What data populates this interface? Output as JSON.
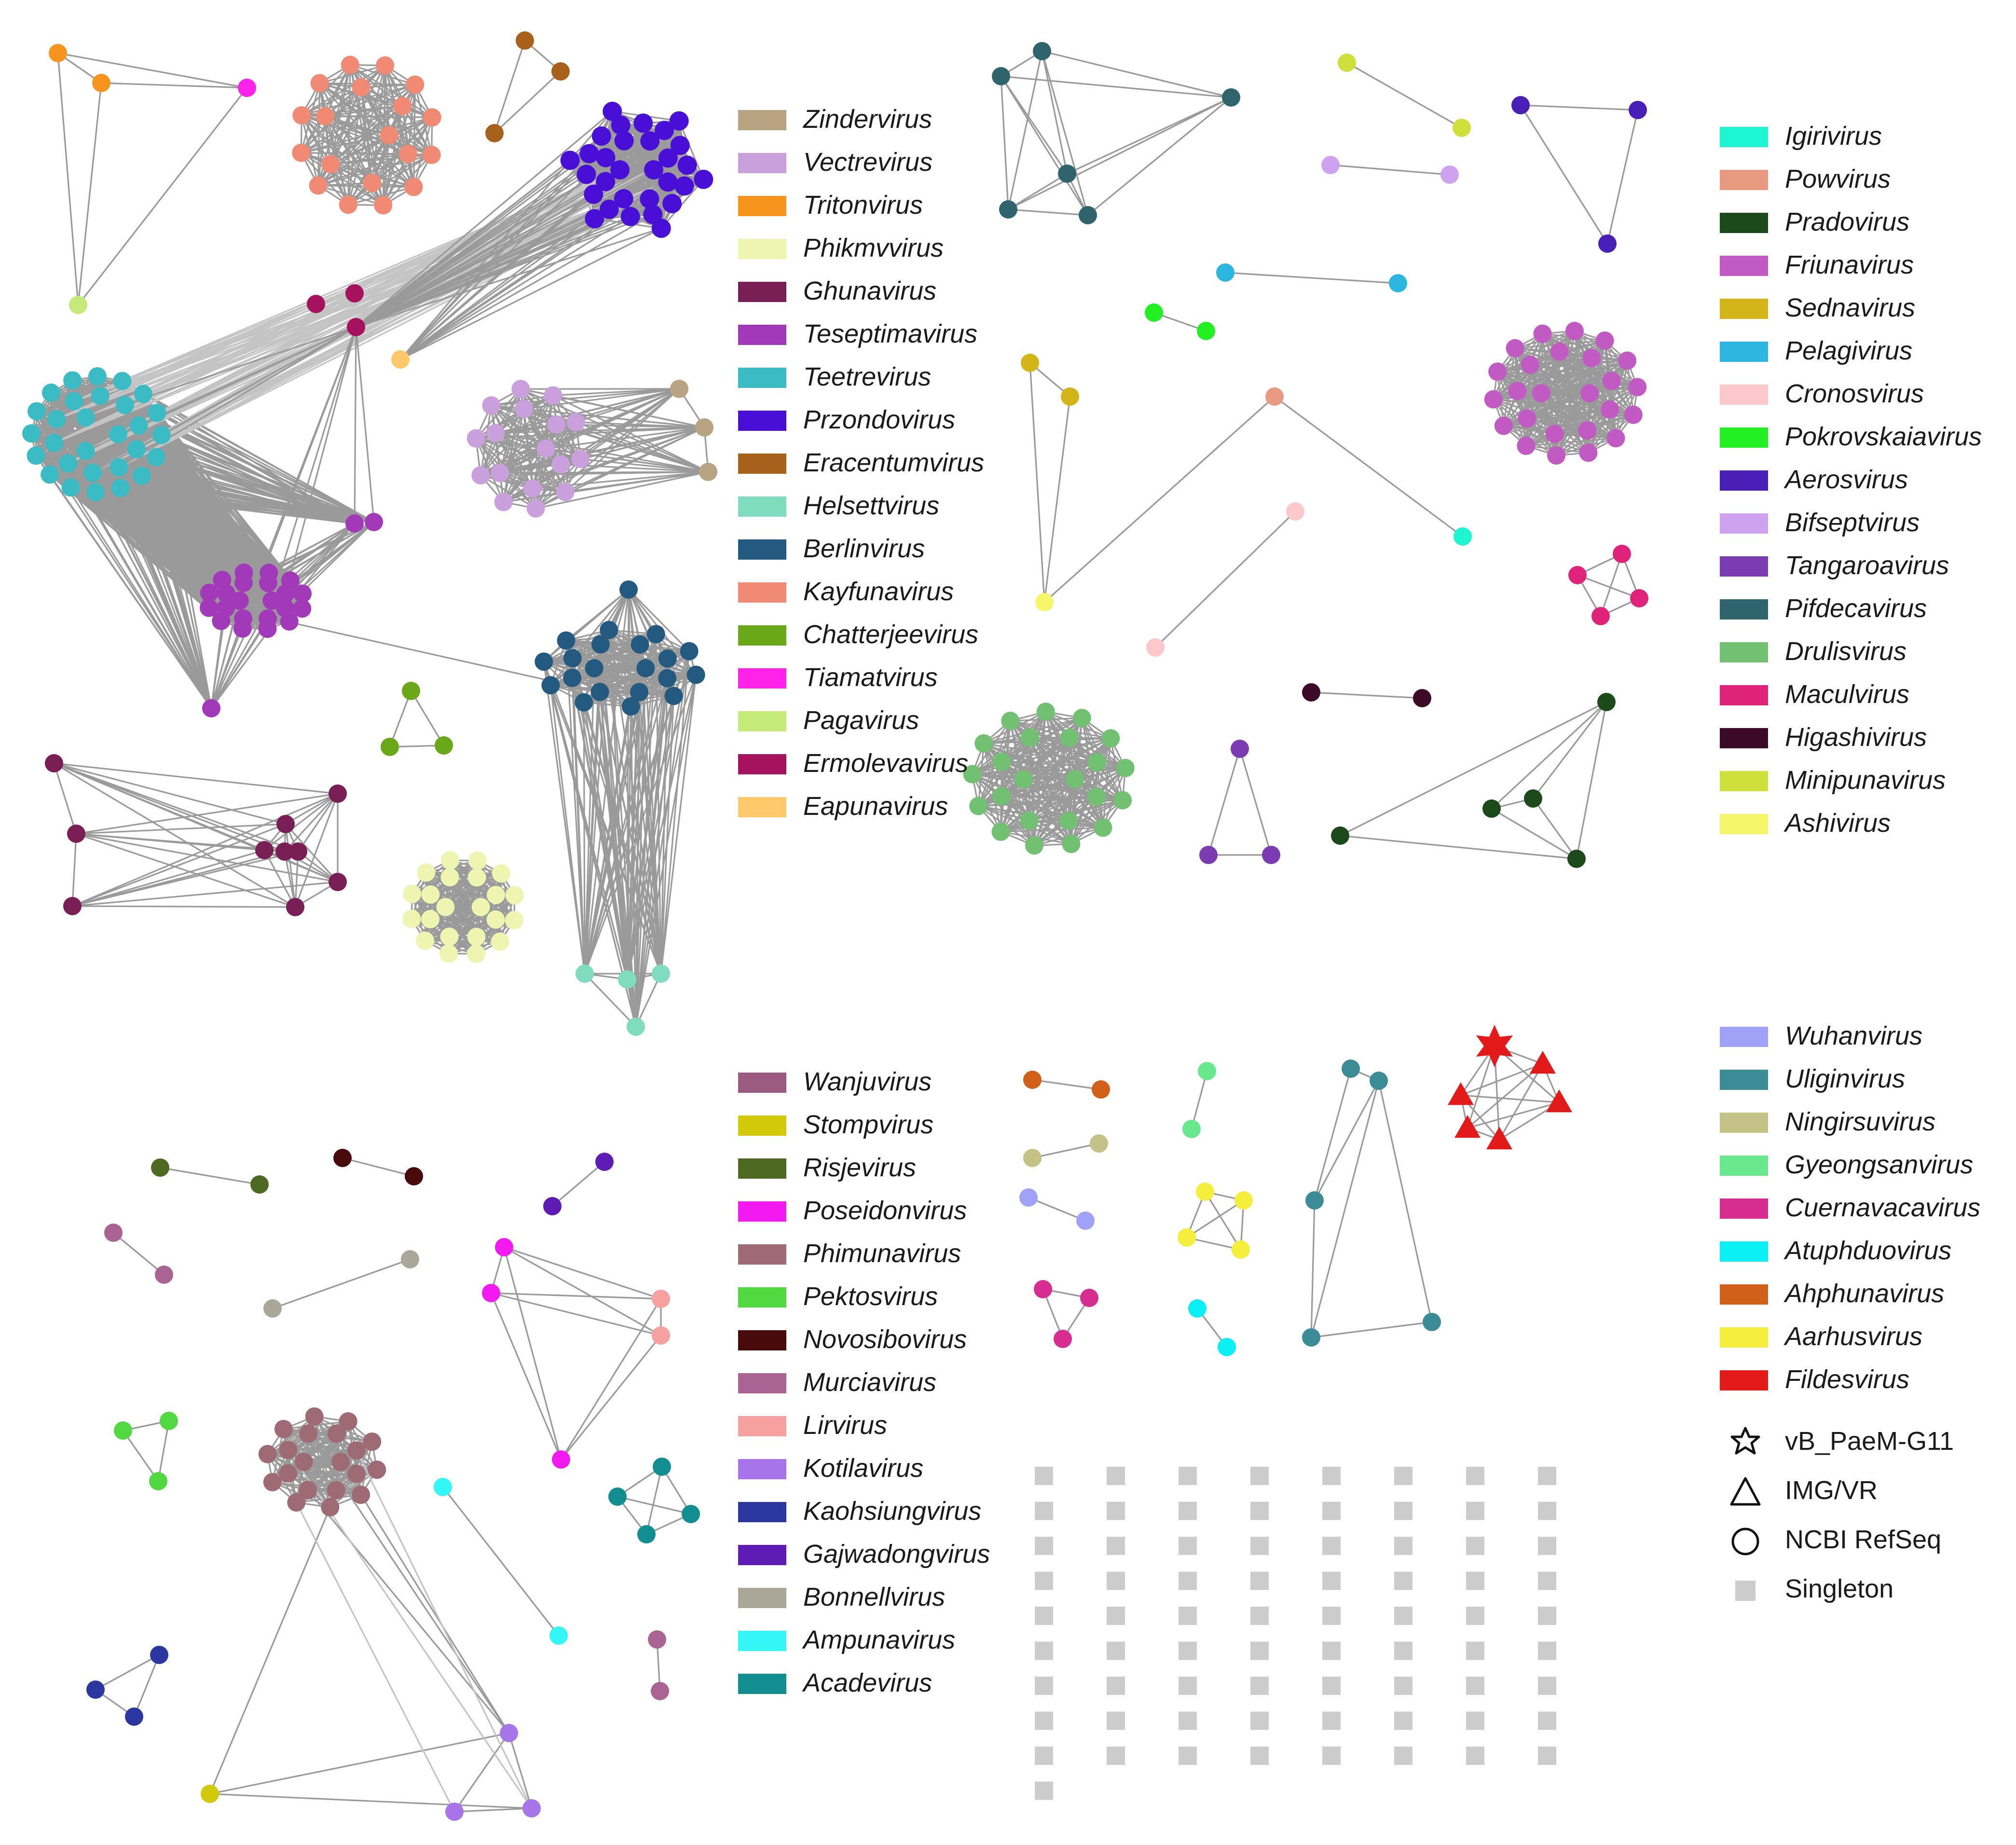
{
  "legend_columns": [
    {
      "id": "legend-a",
      "items": [
        {
          "label": "Zindervirus",
          "color": "#b8a482"
        },
        {
          "label": "Vectrevirus",
          "color": "#c9a0dc"
        },
        {
          "label": "Tritonvirus",
          "color": "#f7941d"
        },
        {
          "label": "Phikmvvirus",
          "color": "#eef5b0"
        },
        {
          "label": "Ghunavirus",
          "color": "#7a1f55"
        },
        {
          "label": "Teseptimavirus",
          "color": "#a139b8"
        },
        {
          "label": "Teetrevirus",
          "color": "#3bbcc4"
        },
        {
          "label": "Przondovirus",
          "color": "#4a0fd6"
        },
        {
          "label": "Eracentumvirus",
          "color": "#a8611a"
        },
        {
          "label": "Helsettvirus",
          "color": "#7fdcbc"
        },
        {
          "label": "Berlinvirus",
          "color": "#245a7f"
        },
        {
          "label": "Kayfunavirus",
          "color": "#f08a74"
        },
        {
          "label": "Chatterjeevirus",
          "color": "#6aa81a"
        },
        {
          "label": "Tiamatvirus",
          "color": "#ff22e8"
        },
        {
          "label": "Pagavirus",
          "color": "#c6ea7a"
        },
        {
          "label": "Ermolevavirus",
          "color": "#a5125d"
        },
        {
          "label": "Eapunavirus",
          "color": "#ffc86a"
        }
      ]
    },
    {
      "id": "legend-b",
      "items": [
        {
          "label": "Igirivirus",
          "color": "#1ef5d3"
        },
        {
          "label": "Powvirus",
          "color": "#e89a80"
        },
        {
          "label": "Pradovirus",
          "color": "#1c4a1a"
        },
        {
          "label": "Friunavirus",
          "color": "#c25ac4"
        },
        {
          "label": "Sednavirus",
          "color": "#d3b51a"
        },
        {
          "label": "Pelagivirus",
          "color": "#2cb6e0"
        },
        {
          "label": "Cronosvirus",
          "color": "#fcc8cc"
        },
        {
          "label": "Pokrovskaiavirus",
          "color": "#22f022"
        },
        {
          "label": "Aerosvirus",
          "color": "#4a1fb8"
        },
        {
          "label": "Bifseptvirus",
          "color": "#cfa2f0"
        },
        {
          "label": "Tangaroavirus",
          "color": "#7a3cb0"
        },
        {
          "label": "Pifdecavirus",
          "color": "#30646c"
        },
        {
          "label": "Drulisvirus",
          "color": "#72c072"
        },
        {
          "label": "Maculvirus",
          "color": "#e0237a"
        },
        {
          "label": "Higashivirus",
          "color": "#3c0a26"
        },
        {
          "label": "Minipunavirus",
          "color": "#cfe03c"
        },
        {
          "label": "Ashivirus",
          "color": "#f6f66a"
        }
      ]
    },
    {
      "id": "legend-c",
      "items": [
        {
          "label": "Wanjuvirus",
          "color": "#9c5a80"
        },
        {
          "label": "Stompvirus",
          "color": "#d2c90a"
        },
        {
          "label": "Risjevirus",
          "color": "#4e6a22"
        },
        {
          "label": "Poseidonvirus",
          "color": "#f21af0"
        },
        {
          "label": "Phimunavirus",
          "color": "#9e6a74"
        },
        {
          "label": "Pektosvirus",
          "color": "#52d840"
        },
        {
          "label": "Novosibovirus",
          "color": "#480a0a"
        },
        {
          "label": "Murciavirus",
          "color": "#aa6494"
        },
        {
          "label": "Lirvirus",
          "color": "#f6a0a0"
        },
        {
          "label": "Kotilavirus",
          "color": "#a774ea"
        },
        {
          "label": "Kaohsiungvirus",
          "color": "#2c36a0"
        },
        {
          "label": "Gajwadongvirus",
          "color": "#5e1cb4"
        },
        {
          "label": "Bonnellvirus",
          "color": "#aaa698"
        },
        {
          "label": "Ampunavirus",
          "color": "#34f6f6"
        },
        {
          "label": "Acadevirus",
          "color": "#128e90"
        }
      ]
    },
    {
      "id": "legend-d",
      "items": [
        {
          "label": "Wuhanvirus",
          "color": "#9fa2f6"
        },
        {
          "label": "Uliginvirus",
          "color": "#3c8c98"
        },
        {
          "label": "Ningirsuvirus",
          "color": "#c4c286"
        },
        {
          "label": "Gyeongsanvirus",
          "color": "#6ae88e"
        },
        {
          "label": "Cuernavacavirus",
          "color": "#d82d90"
        },
        {
          "label": "Atuphduovirus",
          "color": "#0af0f4"
        },
        {
          "label": "Ahphunavirus",
          "color": "#d0601a"
        },
        {
          "label": "Aarhusvirus",
          "color": "#f6ee3c"
        },
        {
          "label": "Fildesvirus",
          "color": "#e31a1a"
        }
      ]
    }
  ],
  "shape_legend": [
    {
      "label": "vB_PaeM-G11",
      "icon": "star-outline-icon"
    },
    {
      "label": "IMG/VR",
      "icon": "triangle-outline-icon"
    },
    {
      "label": "NCBI RefSeq",
      "icon": "circle-outline-icon"
    },
    {
      "label": "Singleton",
      "icon": "gray-square-icon"
    }
  ],
  "singleton_color": "#cccccc",
  "singleton_grid": {
    "columns": 8,
    "rows": 9,
    "extra_in_first_column": 1,
    "total": 73
  }
}
